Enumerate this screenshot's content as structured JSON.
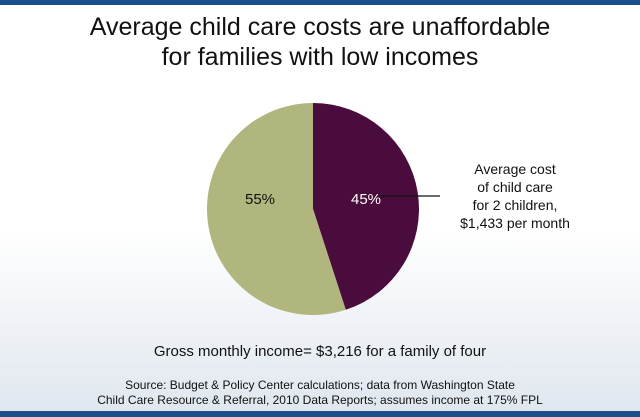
{
  "title_lines": [
    "Average child care costs are unaffordable",
    "for families with low incomes"
  ],
  "chart_data": {
    "type": "pie",
    "title": "Average child care costs are unaffordable for families with low incomes",
    "slices": [
      {
        "label": "45%",
        "value": 45,
        "color": "#4a0c3c"
      },
      {
        "label": "55%",
        "value": 55,
        "color": "#b1b67e"
      }
    ],
    "annotation_lines": [
      "Average cost",
      "of child care",
      "for 2 children,",
      "$1,433 per month"
    ]
  },
  "income_note": "Gross monthly income= $3,216 for a family of four",
  "source_lines": [
    "Source: Budget & Policy Center calculations; data from Washington State",
    "Child Care Resource & Referral, 2010 Data Reports; assumes income at 175% FPL"
  ]
}
